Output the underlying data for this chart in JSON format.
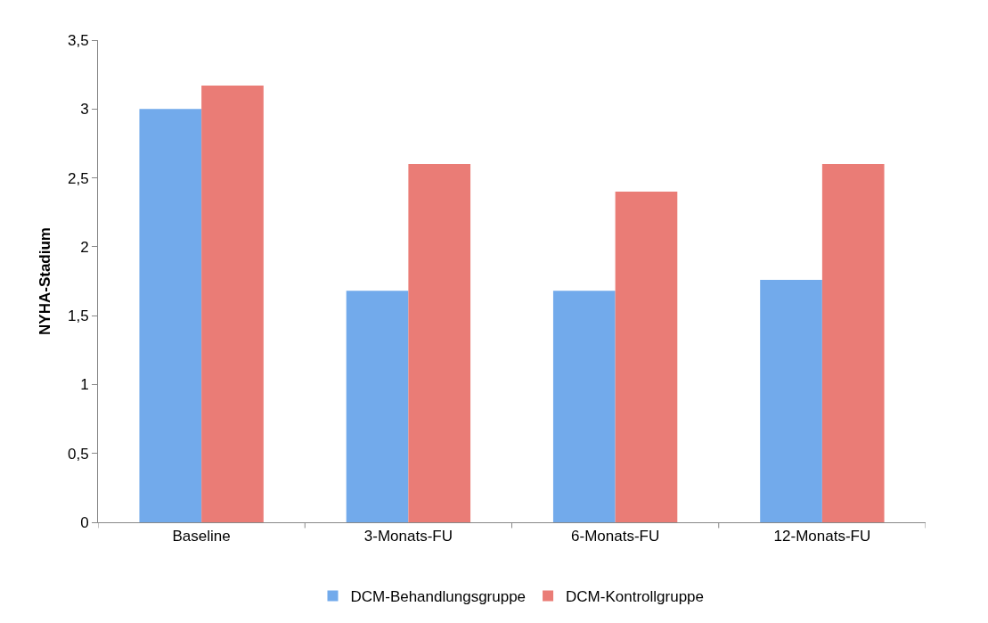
{
  "chart_data": {
    "type": "bar",
    "ylabel": "NYHA-Stadium",
    "categories": [
      "Baseline",
      "3-Monats-FU",
      "6-Monats-FU",
      "12-Monats-FU"
    ],
    "series": [
      {
        "name": "DCM-Behandlungsgruppe",
        "color": "#72aaeb",
        "values": [
          3.0,
          1.68,
          1.68,
          1.76
        ]
      },
      {
        "name": "DCM-Kontrollgruppe",
        "color": "#ea7c76",
        "values": [
          3.17,
          2.6,
          2.4,
          2.6
        ]
      }
    ],
    "ylim": [
      0,
      3.5
    ],
    "yticks": [
      0,
      {
        "value": 0.5,
        "label": "0,5"
      },
      1,
      {
        "value": 1.5,
        "label": "1,5"
      },
      2,
      {
        "value": 2.5,
        "label": "2,5"
      },
      3,
      {
        "value": 3.5,
        "label": "3,5"
      }
    ],
    "grid": false,
    "legend": "bottom"
  }
}
